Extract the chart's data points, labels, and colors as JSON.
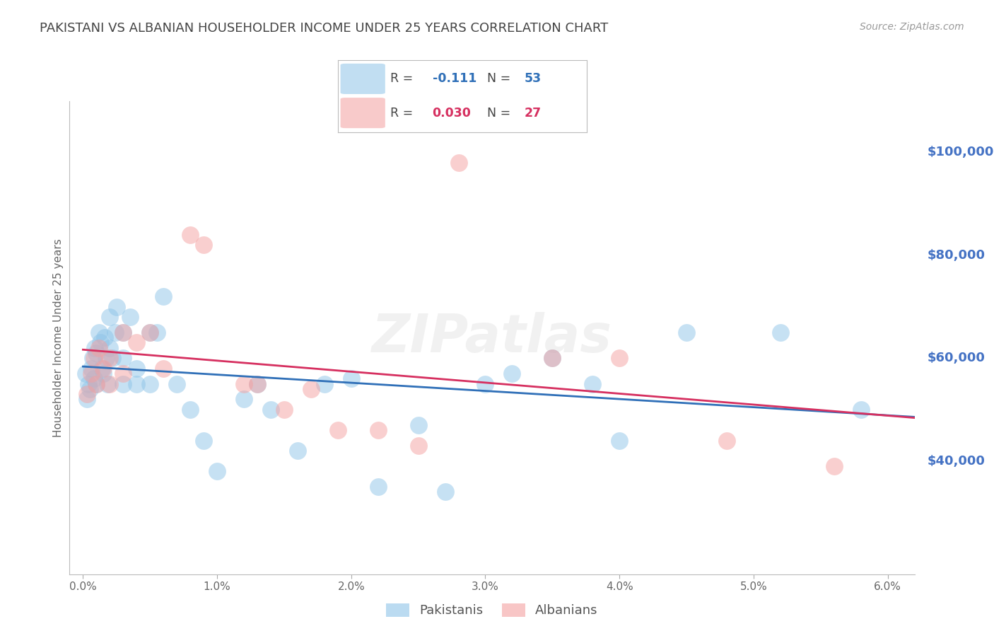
{
  "title": "PAKISTANI VS ALBANIAN HOUSEHOLDER INCOME UNDER 25 YEARS CORRELATION CHART",
  "source": "Source: ZipAtlas.com",
  "ylabel": "Householder Income Under 25 years",
  "legend_pakistanis": "Pakistanis",
  "legend_albanians": "Albanians",
  "r_pakistani": -0.111,
  "n_pakistani": 53,
  "r_albanian": 0.03,
  "n_albanian": 27,
  "pakistani_color": "#8ec4e8",
  "albanian_color": "#f4a0a0",
  "pakistani_line_color": "#3070b8",
  "albanian_line_color": "#d63060",
  "background_color": "#ffffff",
  "grid_color": "#cccccc",
  "right_label_color": "#4472c4",
  "title_color": "#444444",
  "watermark": "ZIPatlas",
  "ylim": [
    18000,
    110000
  ],
  "yticks_right": [
    40000,
    60000,
    80000,
    100000
  ],
  "pakistani_x": [
    0.0002,
    0.0003,
    0.0004,
    0.0005,
    0.0006,
    0.0007,
    0.0008,
    0.0009,
    0.001,
    0.001,
    0.0012,
    0.0013,
    0.0014,
    0.0015,
    0.0016,
    0.0017,
    0.0018,
    0.002,
    0.002,
    0.0022,
    0.0024,
    0.0025,
    0.003,
    0.003,
    0.003,
    0.0035,
    0.004,
    0.004,
    0.005,
    0.005,
    0.0055,
    0.006,
    0.007,
    0.008,
    0.009,
    0.01,
    0.012,
    0.013,
    0.014,
    0.016,
    0.018,
    0.02,
    0.022,
    0.025,
    0.027,
    0.03,
    0.032,
    0.035,
    0.038,
    0.04,
    0.045,
    0.052,
    0.058
  ],
  "pakistani_y": [
    57000,
    52000,
    55000,
    54000,
    58000,
    60000,
    56000,
    62000,
    61000,
    55000,
    65000,
    63000,
    58000,
    57000,
    64000,
    60000,
    55000,
    62000,
    68000,
    60000,
    65000,
    70000,
    65000,
    55000,
    60000,
    68000,
    58000,
    55000,
    65000,
    55000,
    65000,
    72000,
    55000,
    50000,
    44000,
    38000,
    52000,
    55000,
    50000,
    42000,
    55000,
    56000,
    35000,
    47000,
    34000,
    55000,
    57000,
    60000,
    55000,
    44000,
    65000,
    65000,
    50000
  ],
  "albanian_x": [
    0.0003,
    0.0006,
    0.0008,
    0.001,
    0.0012,
    0.0015,
    0.002,
    0.002,
    0.003,
    0.003,
    0.004,
    0.005,
    0.006,
    0.008,
    0.009,
    0.012,
    0.013,
    0.015,
    0.017,
    0.019,
    0.022,
    0.025,
    0.028,
    0.035,
    0.04,
    0.048,
    0.056
  ],
  "albanian_y": [
    53000,
    57000,
    60000,
    55000,
    62000,
    58000,
    60000,
    55000,
    65000,
    57000,
    63000,
    65000,
    58000,
    84000,
    82000,
    55000,
    55000,
    50000,
    54000,
    46000,
    46000,
    43000,
    98000,
    60000,
    60000,
    44000,
    39000
  ]
}
